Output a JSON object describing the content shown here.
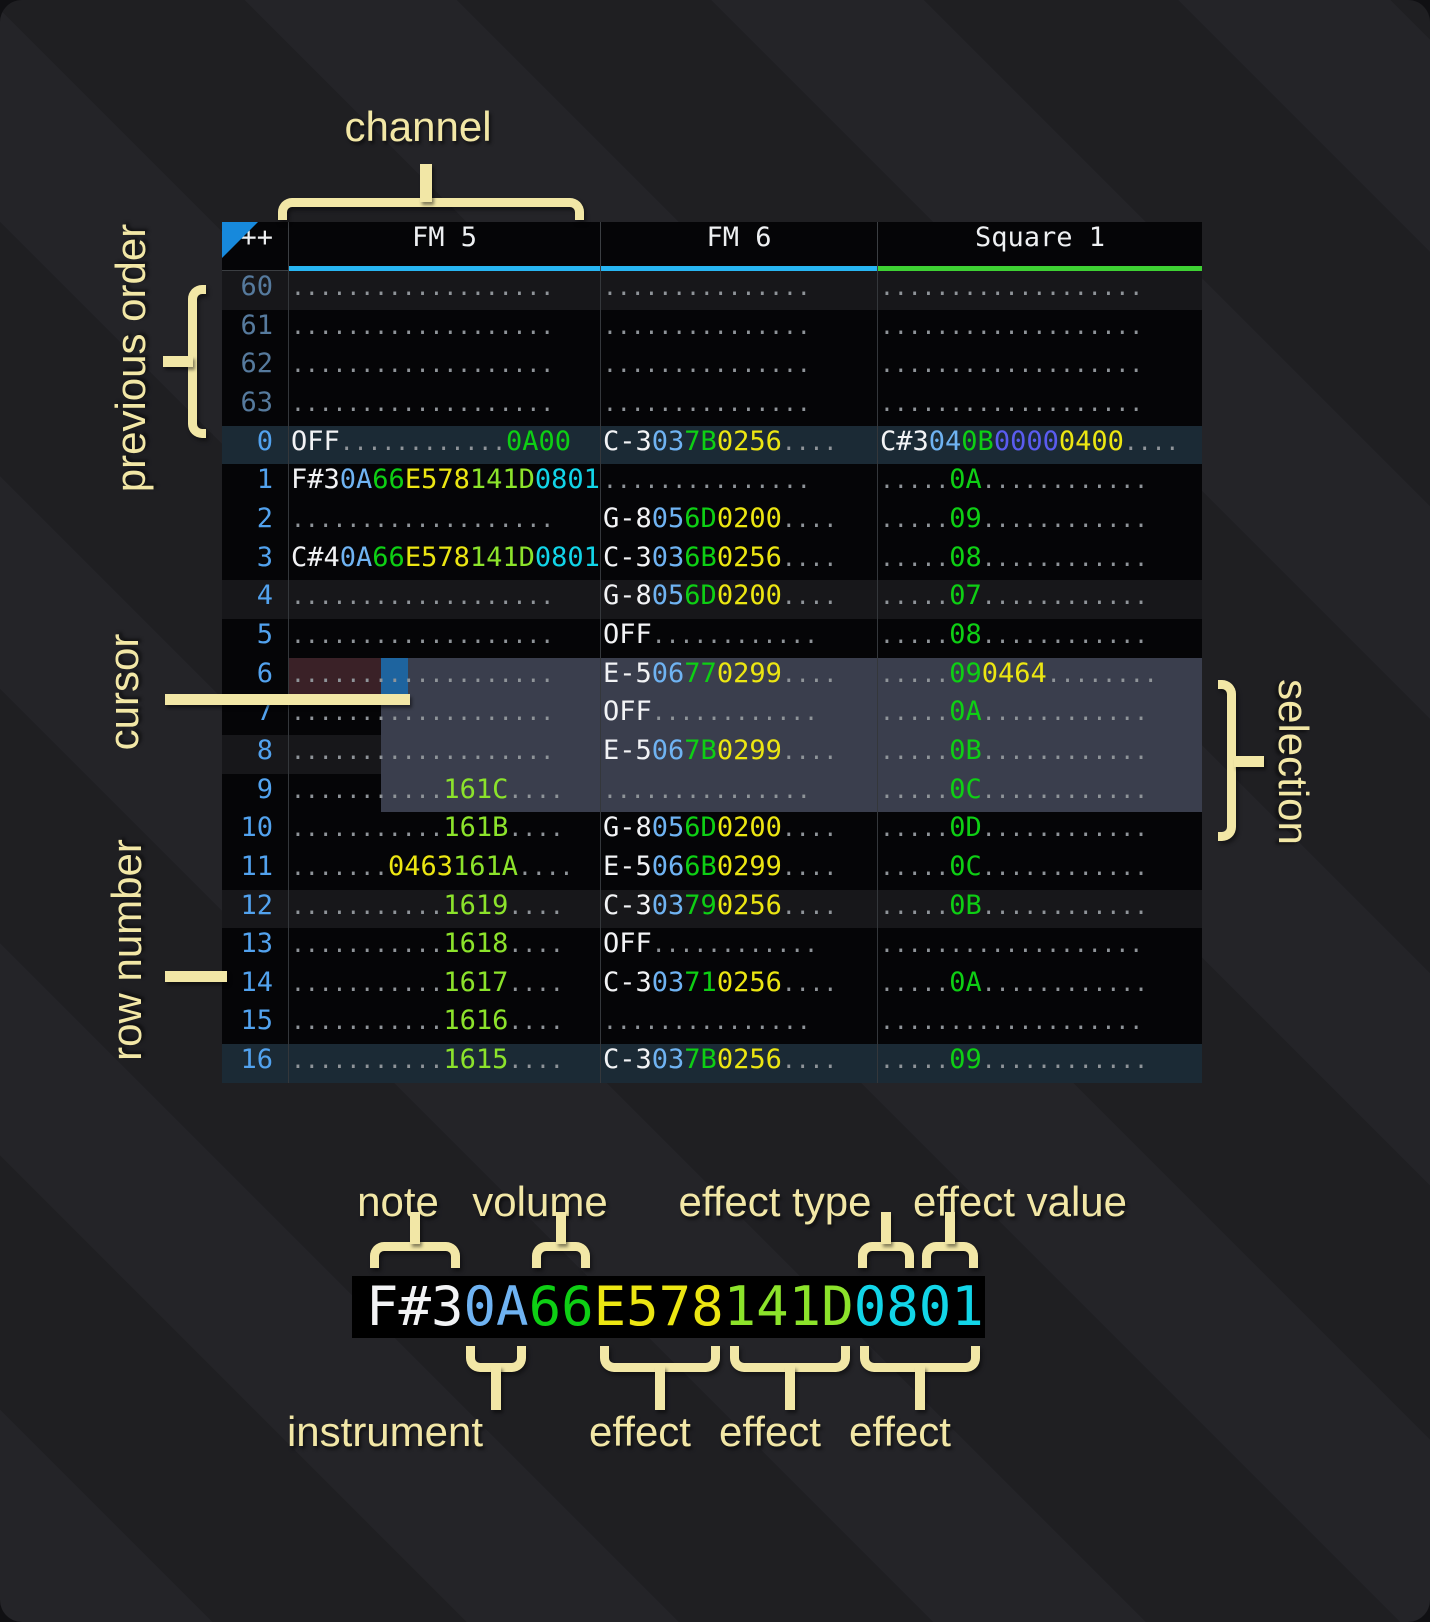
{
  "palette": {
    "annot": "#f2e7a6",
    "table_bg": "#050507",
    "header_text": "#eef0f2",
    "fm_underline": "#28b6f3",
    "sq_underline": "#3ed133",
    "rownum": "#52a2ee",
    "rownum_prev": "#567a9d",
    "note": "#f2f3f5",
    "instrument": "#6fb3f2",
    "volume": "#0ecf14",
    "effect_yellow": "#ece612",
    "effect_lime": "#8ce32b",
    "effect_cyan": "#12d5e8",
    "effect_purple": "#5a5cf0",
    "dots": "#8f9499",
    "cursor": "#1e649f",
    "selection": "#3a3e4d",
    "playhead": "#3a2127",
    "hl16": "#1b2a35",
    "hl4": "#17171a",
    "triangle": "#1789dc"
  },
  "annotations": {
    "channel": "channel",
    "previous_order": "previous order",
    "cursor": "cursor",
    "row_number": "row number",
    "selection": "selection"
  },
  "detail": {
    "note": "note",
    "volume": "volume",
    "effect_type": "effect type",
    "effect_value": "effect value",
    "instrument": "instrument",
    "effect_labels": [
      "effect",
      "effect",
      "effect"
    ],
    "segments": [
      [
        "F#3",
        "w"
      ],
      [
        "0A",
        "ins"
      ],
      [
        "66",
        "vol"
      ],
      [
        "E578",
        "fx_y"
      ],
      [
        "141D",
        "fx_l"
      ],
      [
        "0801",
        "fx_c"
      ]
    ]
  },
  "tracker": {
    "order_header": "++",
    "channels": [
      {
        "name": "FM 5",
        "underline": "#28b6f3"
      },
      {
        "name": "FM 6",
        "underline": "#28b6f3"
      },
      {
        "name": "Square 1",
        "underline": "#3ed133"
      }
    ],
    "rows": [
      {
        "n": "60",
        "prev": true,
        "cls": "hl4",
        "cells": [
          [
            [
              "...................",
              "d"
            ]
          ],
          [
            [
              "...............",
              "d"
            ]
          ],
          [
            [
              "...................",
              "d"
            ]
          ]
        ]
      },
      {
        "n": "61",
        "prev": true,
        "cls": "",
        "cells": [
          [
            [
              "...................",
              "d"
            ]
          ],
          [
            [
              "...............",
              "d"
            ]
          ],
          [
            [
              "...................",
              "d"
            ]
          ]
        ]
      },
      {
        "n": "62",
        "prev": true,
        "cls": "",
        "cells": [
          [
            [
              "...................",
              "d"
            ]
          ],
          [
            [
              "...............",
              "d"
            ]
          ],
          [
            [
              "...................",
              "d"
            ]
          ]
        ]
      },
      {
        "n": "63",
        "prev": true,
        "cls": "",
        "cells": [
          [
            [
              "...................",
              "d"
            ]
          ],
          [
            [
              "...............",
              "d"
            ]
          ],
          [
            [
              "...................",
              "d"
            ]
          ]
        ]
      },
      {
        "n": "0",
        "cls": "hl16",
        "cells": [
          [
            [
              "OFF",
              "w"
            ],
            [
              "............",
              "d"
            ],
            [
              "0A00",
              "vol"
            ]
          ],
          [
            [
              "C-3",
              "w"
            ],
            [
              "03",
              "ins"
            ],
            [
              "7B",
              "vol"
            ],
            [
              "0256",
              "fx_y"
            ],
            [
              "....",
              "d"
            ]
          ],
          [
            [
              "C#3",
              "w"
            ],
            [
              "04",
              "ins"
            ],
            [
              "0B",
              "vol"
            ],
            [
              "0000",
              "fx_p"
            ],
            [
              "0400",
              "fx_y"
            ],
            [
              "....",
              "d"
            ]
          ]
        ]
      },
      {
        "n": "1",
        "cls": "",
        "cells": [
          [
            [
              "F#3",
              "w"
            ],
            [
              "0A",
              "ins"
            ],
            [
              "66",
              "vol"
            ],
            [
              "E578",
              "fx_y"
            ],
            [
              "141D",
              "fx_l"
            ],
            [
              "0801",
              "fx_c"
            ]
          ],
          [
            [
              "...............",
              "d"
            ]
          ],
          [
            [
              ".....",
              "d"
            ],
            [
              "0A",
              "vol"
            ],
            [
              "............",
              "d"
            ]
          ]
        ]
      },
      {
        "n": "2",
        "cls": "",
        "cells": [
          [
            [
              "...................",
              "d"
            ]
          ],
          [
            [
              "G-8",
              "w"
            ],
            [
              "05",
              "ins"
            ],
            [
              "6D",
              "vol"
            ],
            [
              "0200",
              "fx_y"
            ],
            [
              "....",
              "d"
            ]
          ],
          [
            [
              ".....",
              "d"
            ],
            [
              "09",
              "vol"
            ],
            [
              "............",
              "d"
            ]
          ]
        ]
      },
      {
        "n": "3",
        "cls": "",
        "cells": [
          [
            [
              "C#4",
              "w"
            ],
            [
              "0A",
              "ins"
            ],
            [
              "66",
              "vol"
            ],
            [
              "E578",
              "fx_y"
            ],
            [
              "141D",
              "fx_l"
            ],
            [
              "0801",
              "fx_c"
            ]
          ],
          [
            [
              "C-3",
              "w"
            ],
            [
              "03",
              "ins"
            ],
            [
              "6B",
              "vol"
            ],
            [
              "0256",
              "fx_y"
            ],
            [
              "....",
              "d"
            ]
          ],
          [
            [
              ".....",
              "d"
            ],
            [
              "08",
              "vol"
            ],
            [
              "............",
              "d"
            ]
          ]
        ]
      },
      {
        "n": "4",
        "cls": "hl4",
        "cells": [
          [
            [
              "...................",
              "d"
            ]
          ],
          [
            [
              "G-8",
              "w"
            ],
            [
              "05",
              "ins"
            ],
            [
              "6D",
              "vol"
            ],
            [
              "0200",
              "fx_y"
            ],
            [
              "....",
              "d"
            ]
          ],
          [
            [
              ".....",
              "d"
            ],
            [
              "07",
              "vol"
            ],
            [
              "............",
              "d"
            ]
          ]
        ]
      },
      {
        "n": "5",
        "cls": "",
        "cells": [
          [
            [
              "...................",
              "d"
            ]
          ],
          [
            [
              "OFF",
              "w"
            ],
            [
              "............",
              "d"
            ]
          ],
          [
            [
              ".....",
              "d"
            ],
            [
              "08",
              "vol"
            ],
            [
              "............",
              "d"
            ]
          ]
        ]
      },
      {
        "n": "6",
        "cls": "",
        "play": true,
        "sel": true,
        "cur": true,
        "cells": [
          [
            [
              "...................",
              "d"
            ]
          ],
          [
            [
              "E-5",
              "w"
            ],
            [
              "06",
              "ins"
            ],
            [
              "77",
              "vol"
            ],
            [
              "0299",
              "fx_y"
            ],
            [
              "....",
              "d"
            ]
          ],
          [
            [
              ".....",
              "d"
            ],
            [
              "09",
              "vol"
            ],
            [
              "0464",
              "fx_y"
            ],
            [
              "........",
              "d"
            ]
          ]
        ]
      },
      {
        "n": "7",
        "cls": "",
        "sel": true,
        "cells": [
          [
            [
              "...................",
              "d"
            ]
          ],
          [
            [
              "OFF",
              "w"
            ],
            [
              "............",
              "d"
            ]
          ],
          [
            [
              ".....",
              "d"
            ],
            [
              "0A",
              "vol"
            ],
            [
              "............",
              "d"
            ]
          ]
        ]
      },
      {
        "n": "8",
        "cls": "hl4",
        "sel": true,
        "cells": [
          [
            [
              "...................",
              "d"
            ]
          ],
          [
            [
              "E-5",
              "w"
            ],
            [
              "06",
              "ins"
            ],
            [
              "7B",
              "vol"
            ],
            [
              "0299",
              "fx_y"
            ],
            [
              "....",
              "d"
            ]
          ],
          [
            [
              ".....",
              "d"
            ],
            [
              "0B",
              "vol"
            ],
            [
              "............",
              "d"
            ]
          ]
        ]
      },
      {
        "n": "9",
        "cls": "",
        "sel": true,
        "cells": [
          [
            [
              "...........",
              "d"
            ],
            [
              "161C",
              "fx_l"
            ],
            [
              "....",
              "d"
            ]
          ],
          [
            [
              "...............",
              "d"
            ]
          ],
          [
            [
              ".....",
              "d"
            ],
            [
              "0C",
              "vol"
            ],
            [
              "............",
              "d"
            ]
          ]
        ]
      },
      {
        "n": "10",
        "cls": "",
        "cells": [
          [
            [
              "...........",
              "d"
            ],
            [
              "161B",
              "fx_l"
            ],
            [
              "....",
              "d"
            ]
          ],
          [
            [
              "G-8",
              "w"
            ],
            [
              "05",
              "ins"
            ],
            [
              "6D",
              "vol"
            ],
            [
              "0200",
              "fx_y"
            ],
            [
              "....",
              "d"
            ]
          ],
          [
            [
              ".....",
              "d"
            ],
            [
              "0D",
              "vol"
            ],
            [
              "............",
              "d"
            ]
          ]
        ]
      },
      {
        "n": "11",
        "cls": "",
        "cells": [
          [
            [
              ".......",
              "d"
            ],
            [
              "0463",
              "fx_y"
            ],
            [
              "161A",
              "fx_l"
            ],
            [
              "....",
              "d"
            ]
          ],
          [
            [
              "E-5",
              "w"
            ],
            [
              "06",
              "ins"
            ],
            [
              "6B",
              "vol"
            ],
            [
              "0299",
              "fx_y"
            ],
            [
              "....",
              "d"
            ]
          ],
          [
            [
              ".....",
              "d"
            ],
            [
              "0C",
              "vol"
            ],
            [
              "............",
              "d"
            ]
          ]
        ]
      },
      {
        "n": "12",
        "cls": "hl4",
        "cells": [
          [
            [
              "...........",
              "d"
            ],
            [
              "1619",
              "fx_l"
            ],
            [
              "....",
              "d"
            ]
          ],
          [
            [
              "C-3",
              "w"
            ],
            [
              "03",
              "ins"
            ],
            [
              "79",
              "vol"
            ],
            [
              "0256",
              "fx_y"
            ],
            [
              "....",
              "d"
            ]
          ],
          [
            [
              ".....",
              "d"
            ],
            [
              "0B",
              "vol"
            ],
            [
              "............",
              "d"
            ]
          ]
        ]
      },
      {
        "n": "13",
        "cls": "",
        "cells": [
          [
            [
              "...........",
              "d"
            ],
            [
              "1618",
              "fx_l"
            ],
            [
              "....",
              "d"
            ]
          ],
          [
            [
              "OFF",
              "w"
            ],
            [
              "............",
              "d"
            ]
          ],
          [
            [
              "...................",
              "d"
            ]
          ]
        ]
      },
      {
        "n": "14",
        "cls": "",
        "cells": [
          [
            [
              "...........",
              "d"
            ],
            [
              "1617",
              "fx_l"
            ],
            [
              "....",
              "d"
            ]
          ],
          [
            [
              "C-3",
              "w"
            ],
            [
              "03",
              "ins"
            ],
            [
              "71",
              "vol"
            ],
            [
              "0256",
              "fx_y"
            ],
            [
              "....",
              "d"
            ]
          ],
          [
            [
              ".....",
              "d"
            ],
            [
              "0A",
              "vol"
            ],
            [
              "............",
              "d"
            ]
          ]
        ]
      },
      {
        "n": "15",
        "cls": "",
        "cells": [
          [
            [
              "...........",
              "d"
            ],
            [
              "1616",
              "fx_l"
            ],
            [
              "....",
              "d"
            ]
          ],
          [
            [
              "...............",
              "d"
            ]
          ],
          [
            [
              "...................",
              "d"
            ]
          ]
        ]
      },
      {
        "n": "16",
        "cls": "hl16",
        "cells": [
          [
            [
              "...........",
              "d"
            ],
            [
              "1615",
              "fx_l"
            ],
            [
              "....",
              "d"
            ]
          ],
          [
            [
              "C-3",
              "w"
            ],
            [
              "03",
              "ins"
            ],
            [
              "7B",
              "vol"
            ],
            [
              "0256",
              "fx_y"
            ],
            [
              "....",
              "d"
            ]
          ],
          [
            [
              ".....",
              "d"
            ],
            [
              "09",
              "vol"
            ],
            [
              "............",
              "d"
            ]
          ]
        ]
      }
    ]
  }
}
